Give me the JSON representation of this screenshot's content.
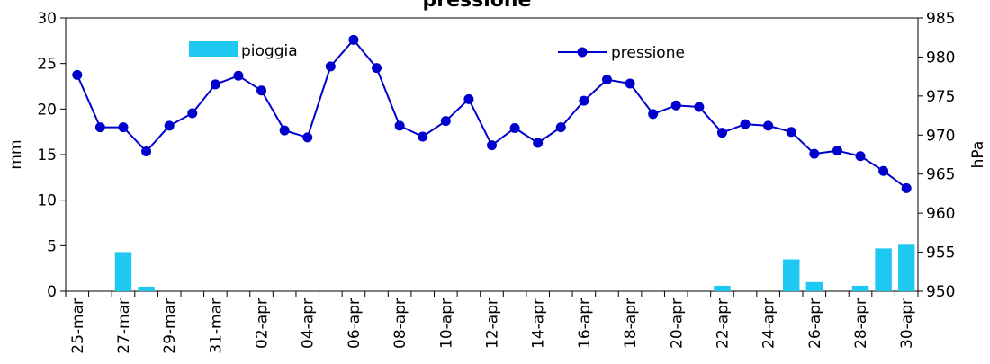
{
  "chart_data": {
    "type": "bar+line",
    "title": "pressione",
    "categories": [
      "25-mar",
      "26-mar",
      "27-mar",
      "28-mar",
      "29-mar",
      "30-mar",
      "31-mar",
      "01-apr",
      "02-apr",
      "03-apr",
      "04-apr",
      "05-apr",
      "06-apr",
      "07-apr",
      "08-apr",
      "09-apr",
      "10-apr",
      "11-apr",
      "12-apr",
      "13-apr",
      "14-apr",
      "15-apr",
      "16-apr",
      "17-apr",
      "18-apr",
      "19-apr",
      "20-apr",
      "21-apr",
      "22-apr",
      "23-apr",
      "24-apr",
      "25-apr",
      "26-apr",
      "27-apr",
      "28-apr",
      "29-apr",
      "30-apr"
    ],
    "x_tick_labels": [
      "25-mar",
      "27-mar",
      "29-mar",
      "31-mar",
      "02-apr",
      "04-apr",
      "06-apr",
      "08-apr",
      "10-apr",
      "12-apr",
      "14-apr",
      "16-apr",
      "18-apr",
      "20-apr",
      "22-apr",
      "24-apr",
      "26-apr",
      "28-apr",
      "30-apr"
    ],
    "series": [
      {
        "name": "pioggia",
        "type": "bar",
        "axis": "left",
        "color": "#1EC8F0",
        "values": [
          0,
          0,
          4.3,
          0.5,
          0,
          0,
          0,
          0,
          0,
          0,
          0,
          0,
          0,
          0,
          0,
          0,
          0,
          0,
          0,
          0,
          0,
          0,
          0,
          0,
          0,
          0,
          0,
          0,
          0.6,
          0,
          0,
          3.5,
          1.0,
          0,
          0.6,
          4.7,
          5.1
        ]
      },
      {
        "name": "pressione",
        "type": "line",
        "axis": "right",
        "color": "#0000CC",
        "values": [
          977.7,
          971.0,
          971.0,
          967.9,
          971.2,
          972.8,
          976.5,
          977.6,
          975.7,
          970.6,
          969.7,
          978.8,
          982.2,
          978.6,
          971.2,
          969.8,
          971.8,
          974.6,
          968.7,
          970.9,
          969.0,
          971.0,
          974.4,
          977.1,
          976.6,
          972.7,
          973.8,
          973.6,
          970.3,
          971.4,
          971.2,
          970.4,
          967.6,
          968.0,
          967.3,
          965.4,
          963.2
        ]
      }
    ],
    "ylabel": "mm",
    "ylabel_right": "hPa",
    "ylim": [
      0,
      30
    ],
    "ylim_right": [
      950,
      985
    ],
    "y_ticks": [
      "0",
      "5",
      "10",
      "15",
      "20",
      "25",
      "30"
    ],
    "y_ticks_right": [
      "950",
      "955",
      "960",
      "965",
      "970",
      "975",
      "980",
      "985"
    ],
    "legend_placement": "top",
    "grid": false
  }
}
